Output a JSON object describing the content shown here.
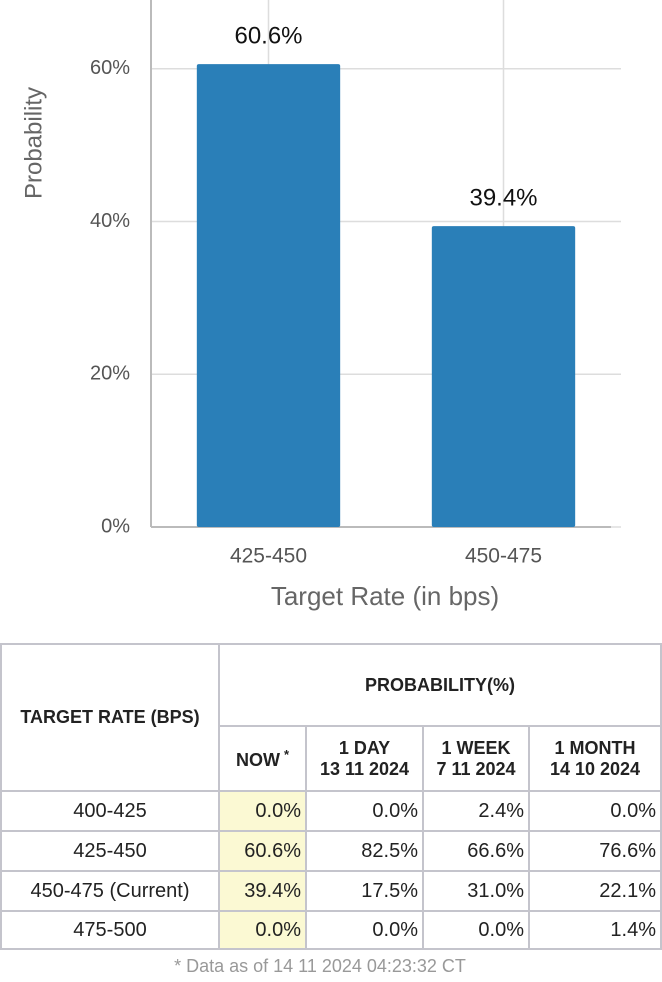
{
  "chart_data": {
    "type": "bar",
    "ylabel": "Probability",
    "xlabel": "Target Rate (in bps)",
    "categories": [
      "425-450",
      "450-475"
    ],
    "values": [
      60.6,
      39.4
    ],
    "value_labels": [
      "60.6%",
      "39.4%"
    ],
    "color": "#2a7fb8",
    "ylim": [
      0,
      69
    ],
    "yticks": [
      {
        "value": 0,
        "label": "0%"
      },
      {
        "value": 20,
        "label": "20%"
      },
      {
        "value": 40,
        "label": "40%"
      },
      {
        "value": 60,
        "label": "60%"
      }
    ],
    "grid": true
  },
  "table": {
    "first_header": "TARGET RATE (BPS)",
    "group_header": "PROBABILITY(%)",
    "columns": [
      {
        "label": "NOW",
        "note": "*"
      },
      {
        "label": "1 DAY",
        "date": "13 11 2024"
      },
      {
        "label": "1 WEEK",
        "date": "7 11 2024"
      },
      {
        "label": "1 MONTH",
        "date": "14 10 2024"
      }
    ],
    "rows": [
      [
        "400-425",
        "0.0%",
        "0.0%",
        "2.4%",
        "0.0%"
      ],
      [
        "425-450",
        "60.6%",
        "82.5%",
        "66.6%",
        "76.6%"
      ],
      [
        "450-475 (Current)",
        "39.4%",
        "17.5%",
        "31.0%",
        "22.1%"
      ],
      [
        "475-500",
        "0.0%",
        "0.0%",
        "0.0%",
        "1.4%"
      ]
    ],
    "footnote": "* Data as of 14 11 2024 04:23:32 CT"
  }
}
